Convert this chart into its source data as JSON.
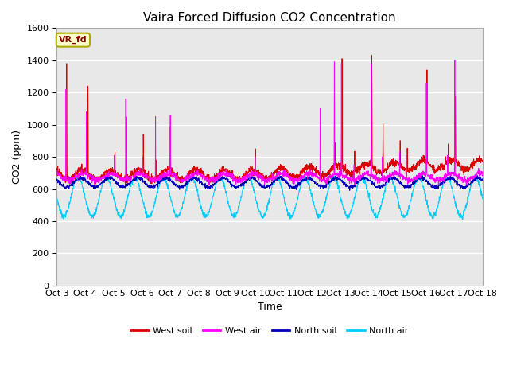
{
  "title": "Vaira Forced Diffusion CO2 Concentration",
  "xlabel": "Time",
  "ylabel": "CO2 (ppm)",
  "ylim": [
    0,
    1600
  ],
  "yticks": [
    0,
    200,
    400,
    600,
    800,
    1000,
    1200,
    1400,
    1600
  ],
  "xlim": [
    0,
    15
  ],
  "xtick_labels": [
    "Oct 3",
    "Oct 4",
    "Oct 5",
    "Oct 6",
    "Oct 7",
    "Oct 8",
    "Oct 9",
    "Oct 10",
    "Oct 11",
    "Oct 12",
    "Oct 13",
    "Oct 14",
    "Oct 15",
    "Oct 16",
    "Oct 17",
    "Oct 18"
  ],
  "legend_label": "VR_fd",
  "legend_bg": "#ffffcc",
  "legend_border": "#aaaa00",
  "series_colors": {
    "west_soil": "#dd0000",
    "west_air": "#ff00ff",
    "north_soil": "#0000bb",
    "north_air": "#00ccff"
  },
  "series_labels": {
    "west_soil": "West soil",
    "west_air": "West air",
    "north_soil": "North soil",
    "north_air": "North air"
  },
  "fig_bg": "#ffffff",
  "plot_bg": "#e8e8e8",
  "grid_color": "#ffffff",
  "title_fontsize": 11,
  "axis_fontsize": 9,
  "tick_fontsize": 8
}
